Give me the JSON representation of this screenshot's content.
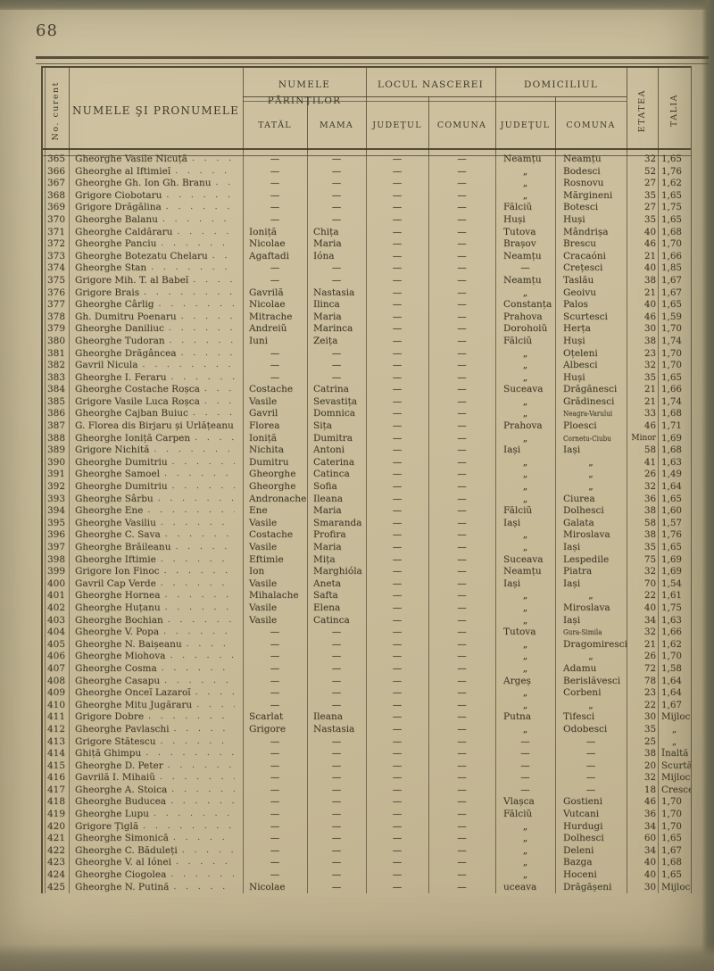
{
  "page": {
    "number": "68"
  },
  "colors": {
    "paper": "#c9bd9b",
    "ink": "#3e3827",
    "rule": "#4a4430",
    "edge": "#6e6d5b"
  },
  "table": {
    "headers": {
      "no": "No. curent",
      "name": "NUMELE ŞI PRONUMELE",
      "parents_group": "NUMELE PĂRINŢILOR",
      "father": "TATĂL",
      "mother": "MAMA",
      "birth_group": "LOCUL NASCEREI",
      "birth_county": "JUDEŢUL",
      "birth_commune": "COMUNA",
      "domicile_group": "DOMICILIUL",
      "domicile_county": "JUDEŢUL",
      "domicile_commune": "COMUNA",
      "age": "ETATEA",
      "height": "TALIA"
    },
    "rows": [
      [
        "365",
        "Gheorghe Vasile Nicuță",
        "—",
        "—",
        "—",
        "—",
        "Neamțu",
        "Neamțu",
        "32",
        "1,65"
      ],
      [
        "366",
        "Gheorghe al Iftimieĭ",
        "—",
        "—",
        "—",
        "—",
        "„",
        "Bodesci",
        "52",
        "1,76"
      ],
      [
        "367",
        "Gheorghe Gh. Ion Gh. Branu",
        "—",
        "—",
        "—",
        "—",
        "„",
        "Rosnovu",
        "27",
        "1,62"
      ],
      [
        "368",
        "Grigore Ciobotaru",
        "—",
        "—",
        "—",
        "—",
        "„",
        "Mărgineni",
        "35",
        "1,65"
      ],
      [
        "369",
        "Grigore Drăgălina",
        "—",
        "—",
        "—",
        "—",
        "Fălciŭ",
        "Botesci",
        "27",
        "1,75"
      ],
      [
        "370",
        "Gheorghe Balanu",
        "—",
        "—",
        "—",
        "—",
        "Huși",
        "Huși",
        "35",
        "1,65"
      ],
      [
        "371",
        "Gheorghe Caldăraru",
        "Ioniță",
        "Chița",
        "—",
        "—",
        "Tutova",
        "Mândrișa",
        "40",
        "1,68"
      ],
      [
        "372",
        "Gheorghe Panciu",
        "Nicolae",
        "Maria",
        "—",
        "—",
        "Brașov",
        "Brescu",
        "46",
        "1,70"
      ],
      [
        "373",
        "Gheorghe Botezatu Chelaru",
        "Agaftadi",
        "Ióna",
        "—",
        "—",
        "Neamțu",
        "Cracaóni",
        "21",
        "1,66"
      ],
      [
        "374",
        "Gheorghe Stan",
        "—",
        "—",
        "—",
        "—",
        "—",
        "Crețesci",
        "40",
        "1,85"
      ],
      [
        "375",
        "Grigore Mih. T. al Babeĭ",
        "—",
        "—",
        "—",
        "—",
        "Neamțu",
        "Taslău",
        "38",
        "1,67"
      ],
      [
        "376",
        "Grigore Brais",
        "Gavrilă",
        "Nastasia",
        "—",
        "—",
        "„",
        "Geoivu",
        "21",
        "1,67"
      ],
      [
        "377",
        "Gheorghe Cârlig",
        "Nicolae",
        "Ilinca",
        "—",
        "—",
        "Constanța",
        "Palos",
        "40",
        "1,65"
      ],
      [
        "378",
        "Gh. Dumitru Poenaru",
        "Mitrache",
        "Maria",
        "—",
        "—",
        "Prahova",
        "Scurtesci",
        "46",
        "1,59"
      ],
      [
        "379",
        "Gheorghe Daniliuc",
        "Andreiŭ",
        "Marinca",
        "—",
        "—",
        "Dorohoiŭ",
        "Herța",
        "30",
        "1,70"
      ],
      [
        "380",
        "Gheorghe Tudoran",
        "Iuni",
        "Zeița",
        "—",
        "—",
        "Fălciŭ",
        "Huși",
        "38",
        "1,74"
      ],
      [
        "381",
        "Gheorghe Drăgâncea",
        "—",
        "—",
        "—",
        "—",
        "„",
        "Oțeleni",
        "23",
        "1,70"
      ],
      [
        "382",
        "Gavril Nicula",
        "—",
        "—",
        "—",
        "—",
        "„",
        "Albesci",
        "32",
        "1,70"
      ],
      [
        "383",
        "Gheorghe I. Feraru",
        "—",
        "—",
        "—",
        "—",
        "„",
        "Huși",
        "35",
        "1,65"
      ],
      [
        "384",
        "Gheorghe Costache Roșca",
        "Costache",
        "Catrina",
        "—",
        "—",
        "Suceava",
        "Drăgănesci",
        "21",
        "1,66"
      ],
      [
        "385",
        "Grigore Vasile Luca Roșca",
        "Vasile",
        "Sevastița",
        "—",
        "—",
        "„",
        "Grădinesci",
        "21",
        "1,74"
      ],
      [
        "386",
        "Gheorghe Cajban Buiuc",
        "Gavril",
        "Domnica",
        "—",
        "—",
        "„",
        "Neagra-Varului",
        "33",
        "1,68"
      ],
      [
        "387",
        "G. Florea dis Birjaru și Urlățeanu",
        "Florea",
        "Sița",
        "—",
        "—",
        "Prahova",
        "Ploesci",
        "46",
        "1,71"
      ],
      [
        "388",
        "Gheorghe Ioniță Carpen",
        "Ioniță",
        "Dumitra",
        "—",
        "—",
        "„",
        "Cornetu-Ciubu",
        "Minor",
        "1,69"
      ],
      [
        "389",
        "Grigore Nichită",
        "Nichita",
        "Antoni",
        "—",
        "—",
        "Iași",
        "Iași",
        "58",
        "1,68"
      ],
      [
        "390",
        "Gheorghe Dumitriu",
        "Dumitru",
        "Caterina",
        "—",
        "—",
        "„",
        "„",
        "41",
        "1,63"
      ],
      [
        "391",
        "Gheorghe Samoel",
        "Gheorghe",
        "Catinca",
        "—",
        "—",
        "„",
        "„",
        "26",
        "1,49"
      ],
      [
        "392",
        "Gheorghe Dumitriu",
        "Gheorghe",
        "Sofia",
        "—",
        "—",
        "„",
        "„",
        "32",
        "1,64"
      ],
      [
        "393",
        "Gheorghe Sârbu",
        "Andronache",
        "Ileana",
        "—",
        "—",
        "„",
        "Ciurea",
        "36",
        "1,65"
      ],
      [
        "394",
        "Gheorghe Ene",
        "Ene",
        "Maria",
        "—",
        "—",
        "Fălciŭ",
        "Dolhesci",
        "38",
        "1,60"
      ],
      [
        "395",
        "Gheorghe Vasiliu",
        "Vasile",
        "Smaranda",
        "—",
        "—",
        "Iași",
        "Galata",
        "58",
        "1,57"
      ],
      [
        "396",
        "Gheorghe C. Sava",
        "Costache",
        "Profira",
        "—",
        "—",
        "„",
        "Miroslava",
        "38",
        "1,76"
      ],
      [
        "397",
        "Gheorghe Brăileanu",
        "Vasile",
        "Maria",
        "—",
        "—",
        "„",
        "Iași",
        "35",
        "1,65"
      ],
      [
        "398",
        "Gheorghe Iftimie",
        "Eftimie",
        "Mița",
        "—",
        "—",
        "Suceava",
        "Lespedile",
        "75",
        "1,69"
      ],
      [
        "399",
        "Grigore Ion Finoc",
        "Ion",
        "Marghióla",
        "—",
        "—",
        "Neamțu",
        "Piatra",
        "32",
        "1,69"
      ],
      [
        "400",
        "Gavril Cap Verde",
        "Vasile",
        "Aneta",
        "—",
        "—",
        "Iași",
        "Iași",
        "70",
        "1,54"
      ],
      [
        "401",
        "Gheorghe Hornea",
        "Mihalache",
        "Safta",
        "—",
        "—",
        "„",
        "„",
        "22",
        "1,61"
      ],
      [
        "402",
        "Gheorghe Huțanu",
        "Vasile",
        "Elena",
        "—",
        "—",
        "„",
        "Miroslava",
        "40",
        "1,75"
      ],
      [
        "403",
        "Gheorghe Bochian",
        "Vasile",
        "Catinca",
        "—",
        "—",
        "„",
        "Iași",
        "34",
        "1,63"
      ],
      [
        "404",
        "Gheorghe V. Popa",
        "—",
        "—",
        "—",
        "—",
        "Tutova",
        "Gura-Simila",
        "32",
        "1,66"
      ],
      [
        "405",
        "Gheorghe N. Baișeanu",
        "—",
        "—",
        "—",
        "—",
        "„",
        "Dragomiresci",
        "21",
        "1,62"
      ],
      [
        "406",
        "Gheorghe Miohova",
        "—",
        "—",
        "—",
        "—",
        "„",
        "„",
        "26",
        "1,70"
      ],
      [
        "407",
        "Gheorghe Cosma",
        "—",
        "—",
        "—",
        "—",
        "„",
        "Adamu",
        "72",
        "1,58"
      ],
      [
        "408",
        "Gheorghe Casapu",
        "—",
        "—",
        "—",
        "—",
        "Argeș",
        "Berislăvesci",
        "78",
        "1,64"
      ],
      [
        "409",
        "Gheorghe Onceĭ Lazaroĭ",
        "—",
        "—",
        "—",
        "—",
        "„",
        "Corbeni",
        "23",
        "1,64"
      ],
      [
        "410",
        "Gheorghe Mitu Jugăraru",
        "—",
        "—",
        "—",
        "—",
        "„",
        "„",
        "22",
        "1,67"
      ],
      [
        "411",
        "Grigore Dobre",
        "Scarlat",
        "Ileana",
        "—",
        "—",
        "Putna",
        "Tifesci",
        "30",
        "Mijloc"
      ],
      [
        "412",
        "Gheorghe Pavlaschi",
        "Grigore",
        "Nastasia",
        "—",
        "—",
        "„",
        "Odobesci",
        "35",
        "„"
      ],
      [
        "413",
        "Grigore Stătescu",
        "—",
        "—",
        "—",
        "—",
        "—",
        "—",
        "25",
        "„"
      ],
      [
        "414",
        "Ghiță Ghimpu",
        "—",
        "—",
        "—",
        "—",
        "—",
        "—",
        "38",
        "Înaltă"
      ],
      [
        "415",
        "Gheorghe D. Peter",
        "—",
        "—",
        "—",
        "—",
        "—",
        "—",
        "20",
        "Scurtă"
      ],
      [
        "416",
        "Gavrilă I. Mihaiŭ",
        "—",
        "—",
        "—",
        "—",
        "—",
        "—",
        "32",
        "Mijloc."
      ],
      [
        "417",
        "Gheorghe A. Stoica",
        "—",
        "—",
        "—",
        "—",
        "—",
        "—",
        "18",
        "Cresce"
      ],
      [
        "418",
        "Gheorghe Buducea",
        "—",
        "—",
        "—",
        "—",
        "Vlașca",
        "Gostieni",
        "46",
        "1,70"
      ],
      [
        "419",
        "Gheorghe Lupu",
        "—",
        "—",
        "—",
        "—",
        "Fălciŭ",
        "Vutcani",
        "36",
        "1,70"
      ],
      [
        "420",
        "Grigore Țiglă",
        "—",
        "—",
        "—",
        "—",
        "„",
        "Hurdugi",
        "34",
        "1,70"
      ],
      [
        "421",
        "Gheorghe Simonică",
        "—",
        "—",
        "—",
        "—",
        "„",
        "Dolhesci",
        "60",
        "1,65"
      ],
      [
        "422",
        "Gheorghe C. Băduleți",
        "—",
        "—",
        "—",
        "—",
        "„",
        "Deleni",
        "34",
        "1,67"
      ],
      [
        "423",
        "Gheorghe V. al Iónei",
        "—",
        "—",
        "—",
        "—",
        "„",
        "Bazga",
        "40",
        "1,68"
      ],
      [
        "424",
        "Gheorghe Ciogolea",
        "—",
        "—",
        "—",
        "—",
        "„",
        "Hoceni",
        "40",
        "1,65"
      ],
      [
        "425",
        "Gheorghe N. Putină",
        "Nicolae",
        "—",
        "—",
        "—",
        "uceava",
        "Drăgășeni",
        "30",
        "Mijloc."
      ]
    ]
  }
}
